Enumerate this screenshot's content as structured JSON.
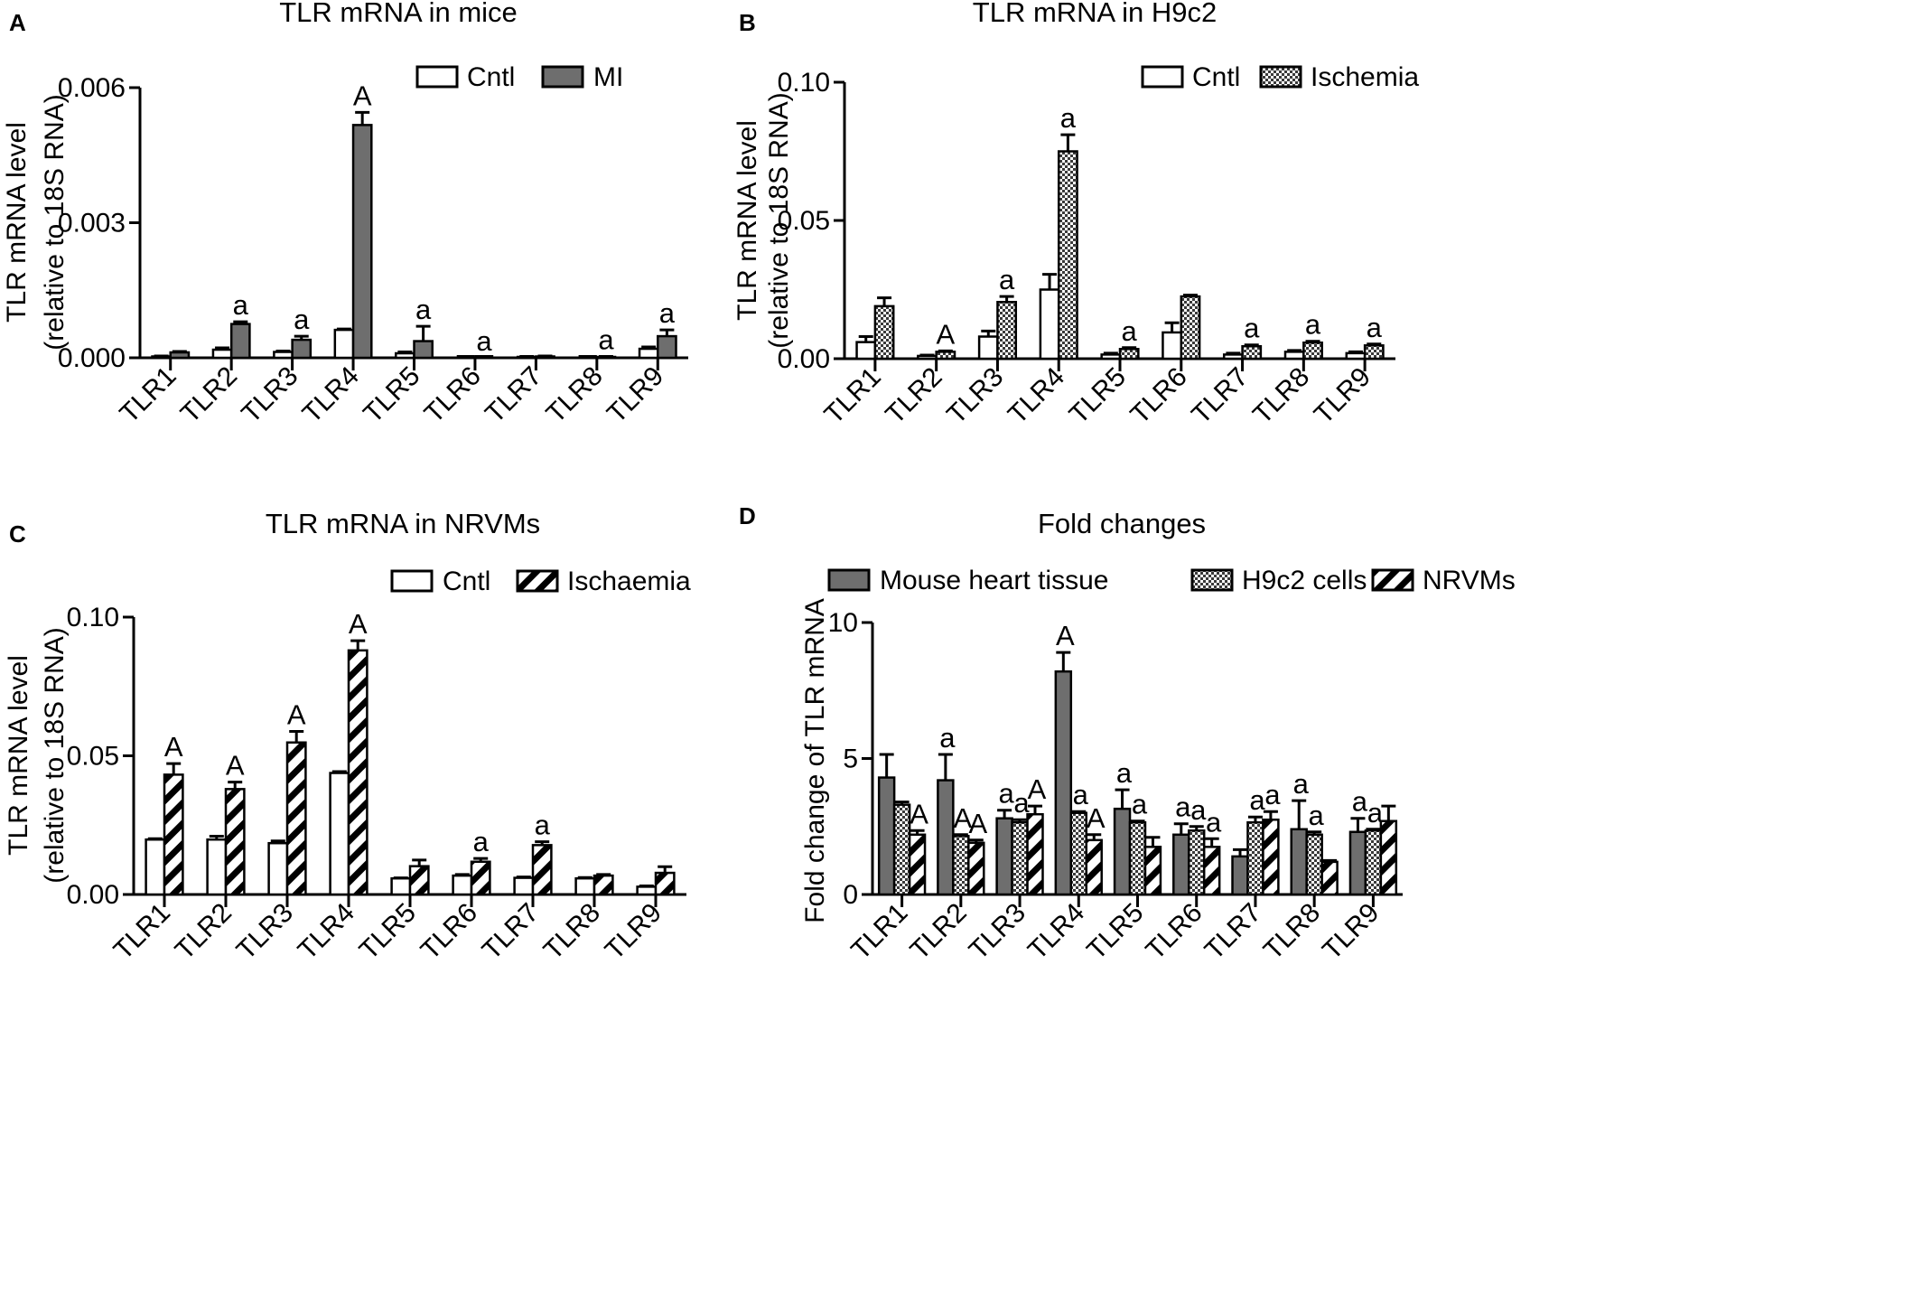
{
  "figure_letters": [
    "A",
    "B",
    "C",
    "D"
  ],
  "chart_data": [
    {
      "type": "bar",
      "panel": "A",
      "title": "TLR mRNA in mice",
      "xlabel": "",
      "ylabel": "TLR mRNA level\n(relative to 18S RNA)",
      "ylim": [
        0,
        0.006
      ],
      "yticks": [
        "0.000",
        "0.003",
        "0.006"
      ],
      "categories": [
        "TLR1",
        "TLR2",
        "TLR3",
        "TLR4",
        "TLR5",
        "TLR6",
        "TLR7",
        "TLR8",
        "TLR9"
      ],
      "legend_position": "top-right",
      "series": [
        {
          "name": "Cntl",
          "fill": "white",
          "values": [
            3e-05,
            0.00018,
            0.00013,
            0.00062,
            0.0001,
            0.0,
            2e-05,
            1e-05,
            0.0002
          ],
          "errors": [
            1e-05,
            4e-05,
            2e-05,
            2e-05,
            3e-05,
            0.0,
            1e-05,
            1e-05,
            4e-05
          ]
        },
        {
          "name": "MI",
          "fill": "gray",
          "values": [
            0.00012,
            0.00075,
            0.0004,
            0.00517,
            0.00037,
            0.0,
            3e-05,
            2e-05,
            0.00048
          ],
          "errors": [
            2e-05,
            5e-05,
            8e-05,
            0.00028,
            0.00033,
            0.0,
            1e-05,
            1e-05,
            0.00014
          ]
        }
      ],
      "annotations": [
        "",
        "a",
        "a",
        "A",
        "a",
        "a",
        "",
        "a",
        "a"
      ],
      "error_bars": true,
      "grid": false
    },
    {
      "type": "bar",
      "panel": "B",
      "title": "TLR mRNA in H9c2",
      "xlabel": "",
      "ylabel": "TLR mRNA level\n(relative to 18S RNA)",
      "ylim": [
        0,
        0.1
      ],
      "yticks": [
        "0.00",
        "0.05",
        "0.10"
      ],
      "categories": [
        "TLR1",
        "TLR2",
        "TLR3",
        "TLR4",
        "TLR5",
        "TLR6",
        "TLR7",
        "TLR8",
        "TLR9"
      ],
      "legend_position": "top-right",
      "series": [
        {
          "name": "Cntl",
          "fill": "white",
          "values": [
            0.006,
            0.001,
            0.008,
            0.025,
            0.0015,
            0.0095,
            0.0015,
            0.0025,
            0.002
          ],
          "errors": [
            0.002,
            0.0003,
            0.002,
            0.0055,
            0.0005,
            0.0035,
            0.0005,
            0.0005,
            0.0005
          ]
        },
        {
          "name": "Ischemia",
          "fill": "checker",
          "values": [
            0.019,
            0.0025,
            0.0205,
            0.075,
            0.0035,
            0.0225,
            0.0045,
            0.0058,
            0.0048
          ],
          "errors": [
            0.003,
            0.0003,
            0.002,
            0.006,
            0.0005,
            0.0005,
            0.0005,
            0.0005,
            0.0005
          ]
        }
      ],
      "annotations": [
        "",
        "A",
        "a",
        "a",
        "a",
        "",
        "a",
        "a",
        "a"
      ],
      "error_bars": true,
      "grid": false
    },
    {
      "type": "bar",
      "panel": "C",
      "title": "TLR mRNA in NRVMs",
      "xlabel": "",
      "ylabel": "TLR mRNA level\n(relative to 18S RNA)",
      "ylim": [
        0,
        0.1
      ],
      "yticks": [
        "0.00",
        "0.05",
        "0.10"
      ],
      "categories": [
        "TLR1",
        "TLR2",
        "TLR3",
        "TLR4",
        "TLR5",
        "TLR6",
        "TLR7",
        "TLR8",
        "TLR9"
      ],
      "legend_position": "top-right",
      "series": [
        {
          "name": "Cntl",
          "fill": "white",
          "values": [
            0.0198,
            0.0198,
            0.0185,
            0.0438,
            0.0058,
            0.0068,
            0.006,
            0.0058,
            0.0028
          ],
          "errors": [
            0.0003,
            0.0012,
            0.0008,
            0.0005,
            0.0002,
            0.0004,
            0.0003,
            0.0003,
            0.0003
          ]
        },
        {
          "name": "Ischaemia",
          "fill": "hatch",
          "values": [
            0.0432,
            0.038,
            0.0548,
            0.088,
            0.0102,
            0.0118,
            0.0178,
            0.0068,
            0.0078
          ],
          "errors": [
            0.004,
            0.0025,
            0.004,
            0.0035,
            0.0022,
            0.0012,
            0.0012,
            0.0004,
            0.0022
          ]
        }
      ],
      "annotations": [
        "A",
        "A",
        "A",
        "A",
        "",
        "a",
        "a",
        "",
        ""
      ],
      "error_bars": true,
      "grid": false
    },
    {
      "type": "bar",
      "panel": "D",
      "title": "Fold changes",
      "xlabel": "",
      "ylabel": "Fold change of TLR mRNA",
      "ylim": [
        0,
        10
      ],
      "yticks": [
        "0",
        "5",
        "10"
      ],
      "categories": [
        "TLR1",
        "TLR2",
        "TLR3",
        "TLR4",
        "TLR5",
        "TLR6",
        "TLR7",
        "TLR8",
        "TLR9"
      ],
      "legend_position": "top",
      "series": [
        {
          "name": "Mouse heart tissue",
          "fill": "gray",
          "values": [
            4.3,
            4.2,
            2.8,
            8.2,
            3.15,
            2.2,
            1.4,
            2.4,
            2.3
          ],
          "errors": [
            0.85,
            0.95,
            0.3,
            0.7,
            0.7,
            0.4,
            0.25,
            1.05,
            0.5
          ]
        },
        {
          "name": "H9c2 cells",
          "fill": "checker",
          "values": [
            3.3,
            2.15,
            2.65,
            3.0,
            2.65,
            2.35,
            2.65,
            2.2,
            2.35
          ],
          "errors": [
            0.1,
            0.05,
            0.1,
            0.05,
            0.05,
            0.15,
            0.2,
            0.1,
            0.05
          ]
        },
        {
          "name": "NRVMs",
          "fill": "hatch",
          "values": [
            2.2,
            1.9,
            2.95,
            2.0,
            1.75,
            1.75,
            2.75,
            1.2,
            2.7
          ],
          "errors": [
            0.15,
            0.1,
            0.3,
            0.2,
            0.35,
            0.3,
            0.3,
            0.05,
            0.55
          ]
        }
      ],
      "annotations": [
        [
          "",
          "",
          "A"
        ],
        [
          "a",
          "A",
          "A"
        ],
        [
          "a",
          "a",
          "A"
        ],
        [
          "A",
          "a",
          "A"
        ],
        [
          "a",
          "a",
          ""
        ],
        [
          "a",
          "a",
          "a"
        ],
        [
          "",
          "a",
          "a"
        ],
        [
          "a",
          "a",
          ""
        ],
        [
          "a",
          "a",
          ""
        ]
      ],
      "error_bars": true,
      "grid": false
    }
  ]
}
